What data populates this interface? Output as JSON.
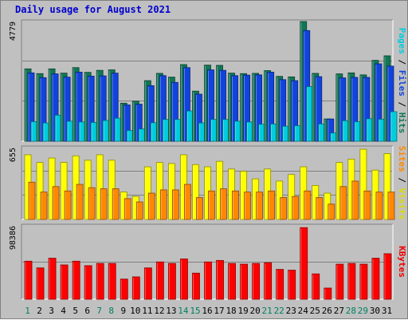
{
  "chart_data": [
    {
      "type": "bar",
      "title": "Daily usage for August 2021",
      "ymax_label": "4779",
      "right_label_parts": [
        {
          "text": "Pages",
          "color": "#00ccdd"
        },
        {
          "text": " / ",
          "color": "#000000"
        },
        {
          "text": "Files",
          "color": "#1144dd"
        },
        {
          "text": " / ",
          "color": "#000000"
        },
        {
          "text": "Hits",
          "color": "#117755"
        }
      ],
      "categories": [
        "1",
        "2",
        "3",
        "4",
        "5",
        "6",
        "7",
        "8",
        "9",
        "10",
        "11",
        "12",
        "13",
        "14",
        "15",
        "16",
        "17",
        "18",
        "19",
        "20",
        "21",
        "22",
        "23",
        "24",
        "25",
        "26",
        "27",
        "28",
        "29",
        "30",
        "31"
      ],
      "weekend_days": [
        "1",
        "7",
        "8",
        "14",
        "15",
        "21",
        "22",
        "28",
        "29"
      ],
      "ylim": [
        0,
        4779
      ],
      "series": [
        {
          "name": "Hits",
          "color": "#117755",
          "values": [
            2890,
            2700,
            2890,
            2720,
            2940,
            2750,
            2830,
            2850,
            1520,
            1600,
            2420,
            2710,
            2560,
            3060,
            2000,
            3040,
            3030,
            2720,
            2700,
            2710,
            2820,
            2590,
            2570,
            4779,
            2710,
            890,
            2690,
            2730,
            2650,
            3230,
            3410
          ]
        },
        {
          "name": "Files",
          "color": "#1144dd",
          "values": [
            2730,
            2540,
            2690,
            2560,
            2760,
            2600,
            2610,
            2720,
            1450,
            1480,
            2220,
            2620,
            2350,
            2940,
            1880,
            2850,
            2830,
            2620,
            2640,
            2650,
            2760,
            2460,
            2420,
            4420,
            2580,
            890,
            2530,
            2550,
            2550,
            3090,
            3000
          ]
        },
        {
          "name": "Pages",
          "color": "#00ccdd",
          "values": [
            780,
            730,
            1040,
            800,
            770,
            750,
            830,
            920,
            430,
            490,
            740,
            870,
            870,
            1210,
            730,
            870,
            870,
            800,
            770,
            680,
            690,
            600,
            620,
            2180,
            690,
            330,
            820,
            780,
            900,
            880,
            1180
          ]
        }
      ]
    },
    {
      "type": "bar",
      "ymax_label": "655",
      "right_label_parts": [
        {
          "text": "Sites",
          "color": "#ff8800"
        },
        {
          "text": " / ",
          "color": "#000000"
        },
        {
          "text": "Visits",
          "color": "#dddd00"
        }
      ],
      "categories": [
        "1",
        "2",
        "3",
        "4",
        "5",
        "6",
        "7",
        "8",
        "9",
        "10",
        "11",
        "12",
        "13",
        "14",
        "15",
        "16",
        "17",
        "18",
        "19",
        "20",
        "21",
        "22",
        "23",
        "24",
        "25",
        "26",
        "27",
        "28",
        "29",
        "30",
        "31"
      ],
      "ylim": [
        0,
        655
      ],
      "series": [
        {
          "name": "Visits",
          "color": "#ffff00",
          "values": [
            590,
            520,
            560,
            520,
            580,
            540,
            590,
            540,
            250,
            210,
            480,
            520,
            510,
            590,
            500,
            480,
            530,
            460,
            440,
            370,
            460,
            350,
            410,
            480,
            310,
            240,
            520,
            550,
            640,
            450,
            600
          ]
        },
        {
          "name": "Sites",
          "color": "#ff8800",
          "values": [
            340,
            250,
            300,
            260,
            320,
            290,
            280,
            280,
            190,
            160,
            240,
            270,
            270,
            320,
            200,
            260,
            280,
            260,
            250,
            250,
            260,
            200,
            210,
            260,
            200,
            140,
            300,
            350,
            260,
            250,
            250
          ]
        }
      ]
    },
    {
      "type": "bar",
      "ymax_label": "98386",
      "right_label_parts": [
        {
          "text": "KBytes",
          "color": "#ee0000"
        }
      ],
      "categories": [
        "1",
        "2",
        "3",
        "4",
        "5",
        "6",
        "7",
        "8",
        "9",
        "10",
        "11",
        "12",
        "13",
        "14",
        "15",
        "16",
        "17",
        "18",
        "19",
        "20",
        "21",
        "22",
        "23",
        "24",
        "25",
        "26",
        "27",
        "28",
        "29",
        "30",
        "31"
      ],
      "ylim": [
        0,
        98386
      ],
      "series": [
        {
          "name": "KBytes",
          "color": "#ff0000",
          "values": [
            51000,
            42000,
            55000,
            46000,
            51000,
            45000,
            48000,
            48000,
            27000,
            30000,
            42000,
            50000,
            48000,
            54000,
            35000,
            50000,
            52000,
            48000,
            47000,
            48000,
            49000,
            40000,
            39000,
            96000,
            34000,
            15000,
            47000,
            48000,
            47000,
            55000,
            61000
          ]
        }
      ]
    }
  ]
}
